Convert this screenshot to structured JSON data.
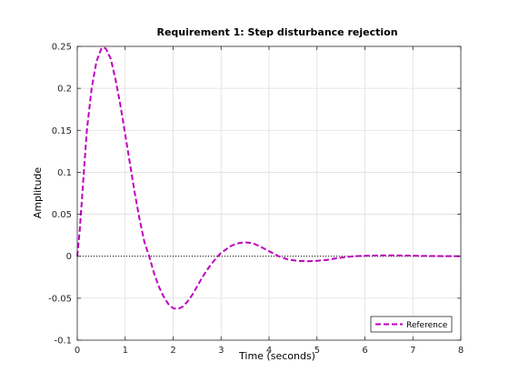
{
  "chart_data": {
    "type": "line",
    "title": "Requirement 1: Step disturbance rejection",
    "xlabel": "Time (seconds)",
    "ylabel": "Amplitude",
    "xlim": [
      0,
      8
    ],
    "ylim": [
      -0.1,
      0.25
    ],
    "xticks": [
      0,
      1,
      2,
      3,
      4,
      5,
      6,
      7,
      8
    ],
    "yticks": [
      -0.1,
      -0.05,
      0,
      0.05,
      0.1,
      0.15,
      0.2,
      0.25
    ],
    "xtick_labels": [
      "0",
      "1",
      "2",
      "3",
      "4",
      "5",
      "6",
      "7",
      "8"
    ],
    "ytick_labels": [
      "-0.1",
      "-0.05",
      "0",
      "0.05",
      "0.1",
      "0.15",
      "0.2",
      "0.25"
    ],
    "grid": true,
    "legend_position": "bottom-right",
    "zero_line": true,
    "series": [
      {
        "name": "Reference",
        "color": "#bf00bf",
        "line_style": "dashed",
        "x": [
          0,
          0.05,
          0.1,
          0.15,
          0.2,
          0.3,
          0.4,
          0.5,
          0.55,
          0.6,
          0.7,
          0.8,
          0.9,
          1.0,
          1.1,
          1.2,
          1.3,
          1.4,
          1.5,
          1.6,
          1.7,
          1.8,
          1.9,
          2.0,
          2.1,
          2.2,
          2.3,
          2.4,
          2.5,
          2.6,
          2.7,
          2.8,
          2.9,
          3.0,
          3.1,
          3.2,
          3.3,
          3.4,
          3.5,
          3.6,
          3.7,
          3.8,
          3.9,
          4.0,
          4.2,
          4.4,
          4.6,
          4.8,
          5.0,
          5.2,
          5.4,
          5.6,
          5.8,
          6.0,
          6.3,
          6.6,
          6.9,
          7.2,
          7.5,
          8.0
        ],
        "y": [
          0,
          0.03,
          0.07,
          0.11,
          0.15,
          0.2,
          0.232,
          0.247,
          0.249,
          0.247,
          0.235,
          0.21,
          0.18,
          0.145,
          0.11,
          0.075,
          0.044,
          0.017,
          0.0,
          -0.02,
          -0.036,
          -0.048,
          -0.057,
          -0.062,
          -0.063,
          -0.06,
          -0.054,
          -0.046,
          -0.036,
          -0.026,
          -0.017,
          -0.009,
          -0.002,
          0.004,
          0.008,
          0.012,
          0.0145,
          0.016,
          0.0165,
          0.016,
          0.0145,
          0.012,
          0.009,
          0.006,
          0.0,
          -0.004,
          -0.0055,
          -0.006,
          -0.0055,
          -0.0045,
          -0.0025,
          -0.001,
          0.0,
          0.0005,
          0.001,
          0.001,
          0.0008,
          0.0004,
          0.0002,
          0.0
        ]
      }
    ]
  },
  "colors": {
    "axes_edge": "#262626",
    "grid": "#dfdfdf",
    "zero_line": "#000000"
  }
}
